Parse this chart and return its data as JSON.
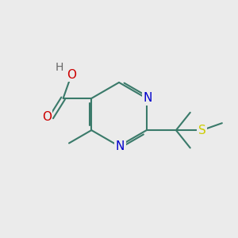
{
  "bg_color": "#ebebeb",
  "bond_color": "#3a7a6a",
  "bond_width": 1.5,
  "atom_colors": {
    "C": "#3a7a6a",
    "N": "#0000cc",
    "O": "#cc0000",
    "S": "#cccc00",
    "H": "#666666"
  },
  "font_size": 10,
  "figsize": [
    3.0,
    3.0
  ],
  "dpi": 100
}
